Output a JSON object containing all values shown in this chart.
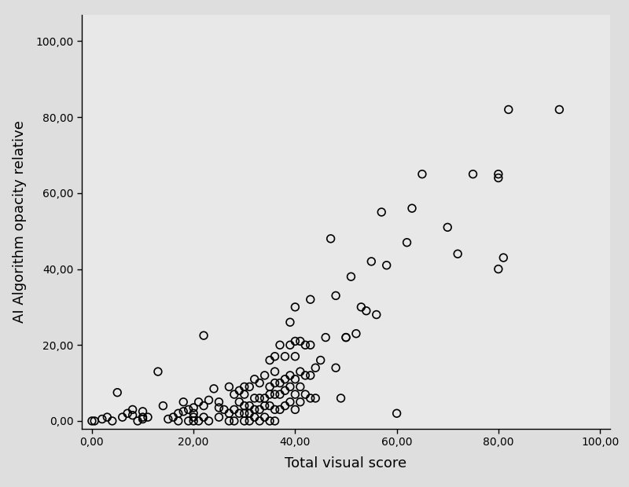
{
  "x": [
    0,
    0.5,
    2,
    3,
    4,
    5,
    6,
    7,
    8,
    8,
    9,
    10,
    10,
    10,
    11,
    13,
    14,
    15,
    16,
    17,
    17,
    18,
    18,
    19,
    19,
    20,
    20,
    20,
    20,
    21,
    21,
    22,
    22,
    22,
    23,
    23,
    24,
    25,
    25,
    25,
    26,
    27,
    27,
    27,
    28,
    28,
    28,
    29,
    29,
    29,
    30,
    30,
    30,
    30,
    30,
    31,
    31,
    31,
    31,
    32,
    32,
    32,
    32,
    33,
    33,
    33,
    33,
    34,
    34,
    34,
    34,
    35,
    35,
    35,
    35,
    35,
    36,
    36,
    36,
    36,
    36,
    36,
    37,
    37,
    37,
    37,
    38,
    38,
    38,
    38,
    39,
    39,
    39,
    39,
    39,
    40,
    40,
    40,
    40,
    40,
    40,
    41,
    41,
    41,
    41,
    42,
    42,
    42,
    43,
    43,
    43,
    43,
    44,
    44,
    45,
    46,
    47,
    48,
    48,
    49,
    50,
    50,
    51,
    52,
    53,
    54,
    55,
    56,
    57,
    58,
    60,
    62,
    63,
    65,
    70,
    72,
    75,
    80,
    80,
    80,
    81,
    82,
    92
  ],
  "y": [
    0,
    0,
    0.5,
    1,
    0,
    7.5,
    1,
    2,
    1.5,
    3,
    0,
    2.5,
    0.5,
    1,
    1,
    13,
    4,
    0.5,
    1,
    0,
    2,
    2.5,
    5,
    0,
    3,
    0,
    1,
    2,
    3.5,
    0,
    5,
    1,
    4,
    22.5,
    0,
    5.5,
    8.5,
    1,
    3.5,
    5,
    3,
    0,
    2,
    9,
    0,
    3,
    7,
    2,
    5,
    8,
    0,
    2,
    4,
    7,
    9,
    0,
    2,
    4,
    9,
    1,
    3,
    6,
    11,
    0,
    3,
    6,
    10,
    1,
    4,
    6,
    12,
    0,
    4,
    7,
    9,
    16,
    0,
    3,
    7,
    10,
    13,
    17,
    3,
    7,
    10,
    20,
    4,
    8,
    11,
    17,
    5,
    9,
    12,
    20,
    26,
    3,
    7,
    11,
    17,
    21,
    30,
    5,
    9,
    13,
    21,
    7,
    12,
    20,
    6,
    12,
    20,
    32,
    6,
    14,
    16,
    22,
    48,
    14,
    33,
    6,
    22,
    22,
    38,
    23,
    30,
    29,
    42,
    28,
    55,
    41,
    2,
    47,
    56,
    65,
    51,
    44,
    65,
    40,
    64,
    65,
    43,
    82,
    82
  ],
  "xlabel": "Total visual score",
  "ylabel": "AI Algorithm opacity relative",
  "xlim": [
    -2,
    102
  ],
  "ylim": [
    -2,
    107
  ],
  "xticks": [
    0,
    20,
    40,
    60,
    80,
    100
  ],
  "yticks": [
    0,
    20,
    40,
    60,
    80,
    100
  ],
  "xtick_labels": [
    "0,00",
    "20,00",
    "40,00",
    "60,00",
    "80,00",
    "100,00"
  ],
  "ytick_labels": [
    "0,00",
    "20,00",
    "40,00",
    "60,00",
    "80,00",
    "100,00"
  ],
  "fig_color": "#dedede",
  "plot_bg_color": "#e8e8e8",
  "marker_color": "black",
  "marker_size": 7,
  "marker_style": "o",
  "marker_facecolor": "none",
  "marker_linewidth": 1.2,
  "xlabel_fontsize": 13,
  "ylabel_fontsize": 13,
  "tick_fontsize": 10
}
